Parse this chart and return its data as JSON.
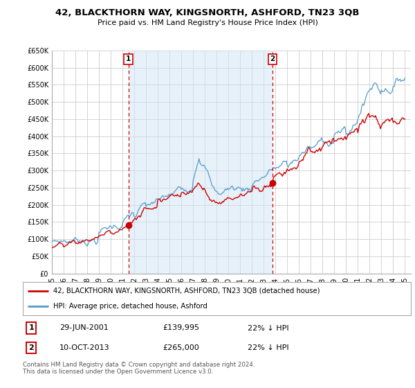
{
  "title": "42, BLACKTHORN WAY, KINGSNORTH, ASHFORD, TN23 3QB",
  "subtitle": "Price paid vs. HM Land Registry's House Price Index (HPI)",
  "ylim": [
    0,
    650000
  ],
  "xlim_start": 1995.0,
  "xlim_end": 2025.5,
  "ytick_labels": [
    "£0",
    "£50K",
    "£100K",
    "£150K",
    "£200K",
    "£250K",
    "£300K",
    "£350K",
    "£400K",
    "£450K",
    "£500K",
    "£550K",
    "£600K",
    "£650K"
  ],
  "ytick_values": [
    0,
    50000,
    100000,
    150000,
    200000,
    250000,
    300000,
    350000,
    400000,
    450000,
    500000,
    550000,
    600000,
    650000
  ],
  "xtick_values": [
    1995,
    1996,
    1997,
    1998,
    1999,
    2000,
    2001,
    2002,
    2003,
    2004,
    2005,
    2006,
    2007,
    2008,
    2009,
    2010,
    2011,
    2012,
    2013,
    2014,
    2015,
    2016,
    2017,
    2018,
    2019,
    2020,
    2021,
    2022,
    2023,
    2024,
    2025
  ],
  "xtick_labels": [
    "95",
    "96",
    "97",
    "98",
    "99",
    "00",
    "01",
    "02",
    "03",
    "04",
    "05",
    "06",
    "07",
    "08",
    "09",
    "10",
    "11",
    "12",
    "13",
    "14",
    "15",
    "16",
    "17",
    "18",
    "19",
    "20",
    "21",
    "22",
    "23",
    "24",
    "25"
  ],
  "hpi_color": "#5599cc",
  "hpi_fill_color": "#d0e4f5",
  "price_color": "#cc0000",
  "vline_color": "#cc0000",
  "sale1_x": 2001.5,
  "sale1_y": 139995,
  "sale1_label": "1",
  "sale1_date": "29-JUN-2001",
  "sale1_price": "£139,995",
  "sale1_hpi": "22% ↓ HPI",
  "sale2_x": 2013.75,
  "sale2_y": 265000,
  "sale2_label": "2",
  "sale2_date": "10-OCT-2013",
  "sale2_price": "£265,000",
  "sale2_hpi": "22% ↓ HPI",
  "legend_line1": "42, BLACKTHORN WAY, KINGSNORTH, ASHFORD, TN23 3QB (detached house)",
  "legend_line2": "HPI: Average price, detached house, Ashford",
  "footer": "Contains HM Land Registry data © Crown copyright and database right 2024.\nThis data is licensed under the Open Government Licence v3.0.",
  "bg_color": "#ffffff",
  "grid_color": "#cccccc"
}
